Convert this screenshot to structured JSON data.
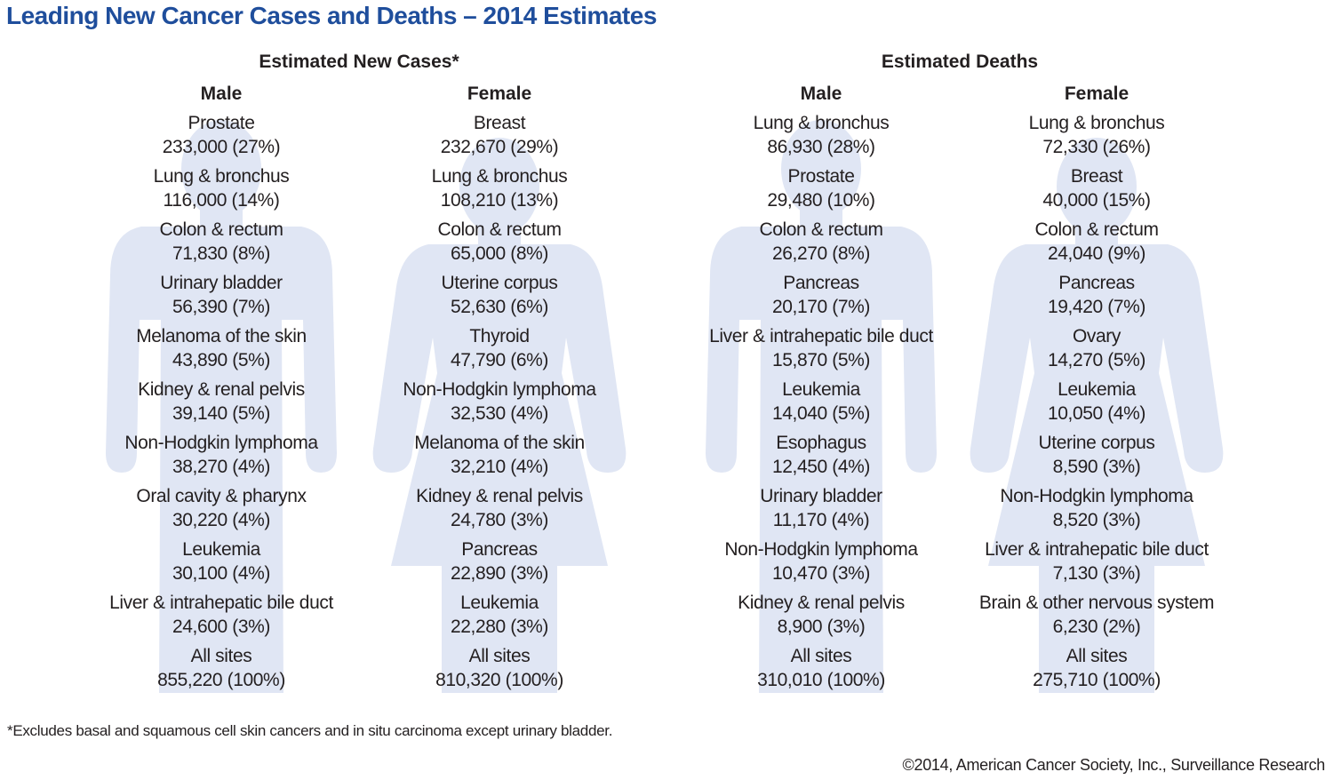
{
  "title": "Leading New Cancer Cases and Deaths – 2014 Estimates",
  "silhouette_color": "#e0e6f4",
  "title_color": "#1f4e9c",
  "groups": [
    {
      "title": "Estimated New Cases*",
      "columns": [
        {
          "sex": "Male",
          "figure": "male",
          "entries": [
            {
              "site": "Prostate",
              "value": "233,000 (27%)"
            },
            {
              "site": "Lung & bronchus",
              "value": "116,000 (14%)"
            },
            {
              "site": "Colon & rectum",
              "value": "71,830 (8%)"
            },
            {
              "site": "Urinary bladder",
              "value": "56,390 (7%)"
            },
            {
              "site": "Melanoma of the skin",
              "value": "43,890 (5%)"
            },
            {
              "site": "Kidney & renal pelvis",
              "value": "39,140 (5%)"
            },
            {
              "site": "Non-Hodgkin lymphoma",
              "value": "38,270 (4%)"
            },
            {
              "site": "Oral cavity & pharynx",
              "value": "30,220 (4%)"
            },
            {
              "site": "Leukemia",
              "value": "30,100 (4%)"
            },
            {
              "site": "Liver & intrahepatic bile duct",
              "value": "24,600 (3%)"
            },
            {
              "site": "All sites",
              "value": "855,220 (100%)"
            }
          ]
        },
        {
          "sex": "Female",
          "figure": "female",
          "entries": [
            {
              "site": "Breast",
              "value": "232,670 (29%)"
            },
            {
              "site": "Lung & bronchus",
              "value": "108,210 (13%)"
            },
            {
              "site": "Colon & rectum",
              "value": "65,000 (8%)"
            },
            {
              "site": "Uterine corpus",
              "value": "52,630 (6%)"
            },
            {
              "site": "Thyroid",
              "value": "47,790 (6%)"
            },
            {
              "site": "Non-Hodgkin lymphoma",
              "value": "32,530 (4%)"
            },
            {
              "site": "Melanoma of the skin",
              "value": "32,210 (4%)"
            },
            {
              "site": "Kidney & renal pelvis",
              "value": "24,780 (3%)"
            },
            {
              "site": "Pancreas",
              "value": "22,890 (3%)"
            },
            {
              "site": "Leukemia",
              "value": "22,280 (3%)"
            },
            {
              "site": "All sites",
              "value": "810,320 (100%)"
            }
          ]
        }
      ]
    },
    {
      "title": "Estimated Deaths",
      "columns": [
        {
          "sex": "Male",
          "figure": "male",
          "entries": [
            {
              "site": "Lung & bronchus",
              "value": "86,930 (28%)"
            },
            {
              "site": "Prostate",
              "value": "29,480 (10%)"
            },
            {
              "site": "Colon & rectum",
              "value": "26,270 (8%)"
            },
            {
              "site": "Pancreas",
              "value": "20,170 (7%)"
            },
            {
              "site": "Liver & intrahepatic bile duct",
              "value": "15,870 (5%)"
            },
            {
              "site": "Leukemia",
              "value": "14,040 (5%)"
            },
            {
              "site": "Esophagus",
              "value": "12,450 (4%)"
            },
            {
              "site": "Urinary bladder",
              "value": "11,170 (4%)"
            },
            {
              "site": "Non-Hodgkin lymphoma",
              "value": "10,470 (3%)"
            },
            {
              "site": "Kidney & renal pelvis",
              "value": "8,900 (3%)"
            },
            {
              "site": "All sites",
              "value": "310,010 (100%)"
            }
          ]
        },
        {
          "sex": "Female",
          "figure": "female",
          "entries": [
            {
              "site": "Lung & bronchus",
              "value": "72,330 (26%)"
            },
            {
              "site": "Breast",
              "value": "40,000 (15%)"
            },
            {
              "site": "Colon & rectum",
              "value": "24,040 (9%)"
            },
            {
              "site": "Pancreas",
              "value": "19,420 (7%)"
            },
            {
              "site": "Ovary",
              "value": "14,270 (5%)"
            },
            {
              "site": "Leukemia",
              "value": "10,050 (4%)"
            },
            {
              "site": "Uterine corpus",
              "value": "8,590 (3%)"
            },
            {
              "site": "Non-Hodgkin lymphoma",
              "value": "8,520 (3%)"
            },
            {
              "site": "Liver & intrahepatic bile duct",
              "value": "7,130 (3%)"
            },
            {
              "site": "Brain & other nervous system",
              "value": "6,230 (2%)"
            },
            {
              "site": "All sites",
              "value": "275,710 (100%)"
            }
          ]
        }
      ]
    }
  ],
  "footnote": "*Excludes basal and squamous cell skin cancers and in situ carcinoma except urinary bladder.",
  "credit": "©2014, American Cancer Society, Inc., Surveillance Research"
}
